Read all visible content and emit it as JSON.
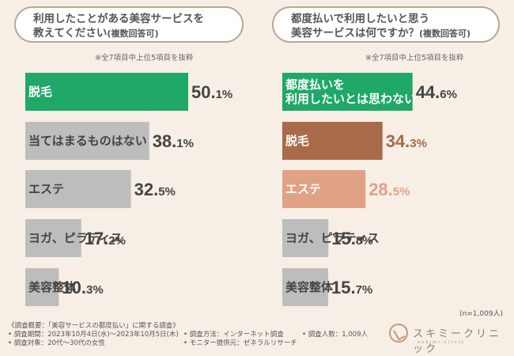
{
  "left_question": {
    "line1": "利用したことがある美容サービスを",
    "line2": "教えてください",
    "tag": "(複数回答可)",
    "note": "※全7項目中上位5項目を抜粋"
  },
  "right_question": {
    "line1": "都度払いで利用したいと思う",
    "line2": "美容サービスは何ですか？",
    "tag": "(複数回答可)",
    "note": "※全7項目中上位5項目を抜粋"
  },
  "chart_data": [
    {
      "type": "bar",
      "orientation": "horizontal",
      "title": "利用したことがある美容サービスを教えてください(複数回答可)",
      "categories": [
        "脱毛",
        "当てはまるものはない",
        "エステ",
        "ヨガ、ピラティス",
        "美容整体"
      ],
      "values": [
        50.1,
        38.1,
        32.5,
        17.2,
        10.3
      ],
      "unit": "%",
      "colors": [
        "#1fa868",
        "#bdbdbd",
        "#bdbdbd",
        "#bdbdbd",
        "#bdbdbd"
      ],
      "label_colors": [
        "#ffffff",
        "#444444",
        "#444444",
        "#444444",
        "#444444"
      ],
      "xlim": [
        0,
        50.1
      ],
      "grid": false,
      "legend": "none"
    },
    {
      "type": "bar",
      "orientation": "horizontal",
      "title": "都度払いで利用したいと思う美容サービスは何ですか？(複数回答可)",
      "categories": [
        "都度払いを\n利用したいとは思わない",
        "脱毛",
        "エステ",
        "ヨガ、ピラティス",
        "美容整体"
      ],
      "values": [
        44.6,
        34.3,
        28.5,
        15.8,
        15.7
      ],
      "unit": "%",
      "colors": [
        "#1fa868",
        "#a86a48",
        "#e0a184",
        "#bdbdbd",
        "#bdbdbd"
      ],
      "label_colors": [
        "#ffffff",
        "#ffffff",
        "#ffffff",
        "#444444",
        "#444444"
      ],
      "value_colors": [
        "#444444",
        "#a86a48",
        "#e0a184",
        "#444444",
        "#444444"
      ],
      "xlim": [
        0,
        50.1
      ],
      "grid": false,
      "legend": "none"
    }
  ],
  "sample": "(n=1,009人)",
  "footer": {
    "summary": "《調査概要：「美容サービスの都度払い」に関する調査》",
    "period": "• 調査期間：2023年10月4日(水)～2023年10月5日(木)",
    "method": "• 調査方法：インターネット調査",
    "count": "• 調査人数：1,009人",
    "target": "• 調査対象：20代～30代の女性",
    "provider": "• モニター提供元：ゼネラルリサーチ"
  },
  "logo": {
    "name": "スキミークリニック",
    "sub": "sukimi-clinic",
    "icon": "clinic-logo-icon"
  }
}
